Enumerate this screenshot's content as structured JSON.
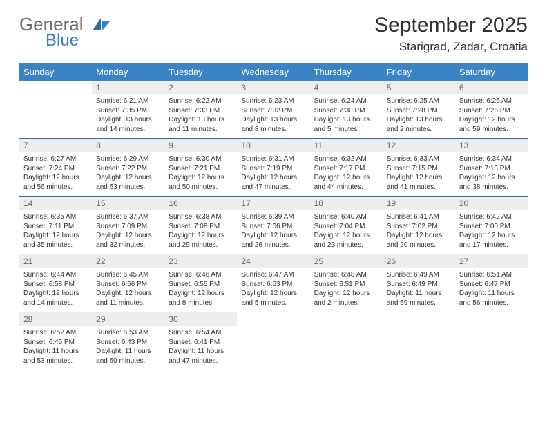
{
  "brand": {
    "part1": "General",
    "part2": "Blue"
  },
  "title": "September 2025",
  "location": "Starigrad, Zadar, Croatia",
  "colors": {
    "header_bg": "#3a84c6",
    "header_text": "#ffffff",
    "daynum_bg": "#ededed",
    "daynum_text": "#666666",
    "row_divider": "#2f6ca5",
    "brand_blue": "#3a7fc4",
    "brand_gray": "#6b6b6b"
  },
  "daynames": [
    "Sunday",
    "Monday",
    "Tuesday",
    "Wednesday",
    "Thursday",
    "Friday",
    "Saturday"
  ],
  "weeks": [
    [
      {
        "n": "",
        "sr": "",
        "ss": "",
        "dl": ""
      },
      {
        "n": "1",
        "sr": "Sunrise: 6:21 AM",
        "ss": "Sunset: 7:35 PM",
        "dl": "Daylight: 13 hours and 14 minutes."
      },
      {
        "n": "2",
        "sr": "Sunrise: 6:22 AM",
        "ss": "Sunset: 7:33 PM",
        "dl": "Daylight: 13 hours and 11 minutes."
      },
      {
        "n": "3",
        "sr": "Sunrise: 6:23 AM",
        "ss": "Sunset: 7:32 PM",
        "dl": "Daylight: 13 hours and 8 minutes."
      },
      {
        "n": "4",
        "sr": "Sunrise: 6:24 AM",
        "ss": "Sunset: 7:30 PM",
        "dl": "Daylight: 13 hours and 5 minutes."
      },
      {
        "n": "5",
        "sr": "Sunrise: 6:25 AM",
        "ss": "Sunset: 7:28 PM",
        "dl": "Daylight: 13 hours and 2 minutes."
      },
      {
        "n": "6",
        "sr": "Sunrise: 6:26 AM",
        "ss": "Sunset: 7:26 PM",
        "dl": "Daylight: 12 hours and 59 minutes."
      }
    ],
    [
      {
        "n": "7",
        "sr": "Sunrise: 6:27 AM",
        "ss": "Sunset: 7:24 PM",
        "dl": "Daylight: 12 hours and 56 minutes."
      },
      {
        "n": "8",
        "sr": "Sunrise: 6:29 AM",
        "ss": "Sunset: 7:22 PM",
        "dl": "Daylight: 12 hours and 53 minutes."
      },
      {
        "n": "9",
        "sr": "Sunrise: 6:30 AM",
        "ss": "Sunset: 7:21 PM",
        "dl": "Daylight: 12 hours and 50 minutes."
      },
      {
        "n": "10",
        "sr": "Sunrise: 6:31 AM",
        "ss": "Sunset: 7:19 PM",
        "dl": "Daylight: 12 hours and 47 minutes."
      },
      {
        "n": "11",
        "sr": "Sunrise: 6:32 AM",
        "ss": "Sunset: 7:17 PM",
        "dl": "Daylight: 12 hours and 44 minutes."
      },
      {
        "n": "12",
        "sr": "Sunrise: 6:33 AM",
        "ss": "Sunset: 7:15 PM",
        "dl": "Daylight: 12 hours and 41 minutes."
      },
      {
        "n": "13",
        "sr": "Sunrise: 6:34 AM",
        "ss": "Sunset: 7:13 PM",
        "dl": "Daylight: 12 hours and 38 minutes."
      }
    ],
    [
      {
        "n": "14",
        "sr": "Sunrise: 6:35 AM",
        "ss": "Sunset: 7:11 PM",
        "dl": "Daylight: 12 hours and 35 minutes."
      },
      {
        "n": "15",
        "sr": "Sunrise: 6:37 AM",
        "ss": "Sunset: 7:09 PM",
        "dl": "Daylight: 12 hours and 32 minutes."
      },
      {
        "n": "16",
        "sr": "Sunrise: 6:38 AM",
        "ss": "Sunset: 7:08 PM",
        "dl": "Daylight: 12 hours and 29 minutes."
      },
      {
        "n": "17",
        "sr": "Sunrise: 6:39 AM",
        "ss": "Sunset: 7:06 PM",
        "dl": "Daylight: 12 hours and 26 minutes."
      },
      {
        "n": "18",
        "sr": "Sunrise: 6:40 AM",
        "ss": "Sunset: 7:04 PM",
        "dl": "Daylight: 12 hours and 23 minutes."
      },
      {
        "n": "19",
        "sr": "Sunrise: 6:41 AM",
        "ss": "Sunset: 7:02 PM",
        "dl": "Daylight: 12 hours and 20 minutes."
      },
      {
        "n": "20",
        "sr": "Sunrise: 6:42 AM",
        "ss": "Sunset: 7:00 PM",
        "dl": "Daylight: 12 hours and 17 minutes."
      }
    ],
    [
      {
        "n": "21",
        "sr": "Sunrise: 6:44 AM",
        "ss": "Sunset: 6:58 PM",
        "dl": "Daylight: 12 hours and 14 minutes."
      },
      {
        "n": "22",
        "sr": "Sunrise: 6:45 AM",
        "ss": "Sunset: 6:56 PM",
        "dl": "Daylight: 12 hours and 11 minutes."
      },
      {
        "n": "23",
        "sr": "Sunrise: 6:46 AM",
        "ss": "Sunset: 6:55 PM",
        "dl": "Daylight: 12 hours and 8 minutes."
      },
      {
        "n": "24",
        "sr": "Sunrise: 6:47 AM",
        "ss": "Sunset: 6:53 PM",
        "dl": "Daylight: 12 hours and 5 minutes."
      },
      {
        "n": "25",
        "sr": "Sunrise: 6:48 AM",
        "ss": "Sunset: 6:51 PM",
        "dl": "Daylight: 12 hours and 2 minutes."
      },
      {
        "n": "26",
        "sr": "Sunrise: 6:49 AM",
        "ss": "Sunset: 6:49 PM",
        "dl": "Daylight: 11 hours and 59 minutes."
      },
      {
        "n": "27",
        "sr": "Sunrise: 6:51 AM",
        "ss": "Sunset: 6:47 PM",
        "dl": "Daylight: 11 hours and 56 minutes."
      }
    ],
    [
      {
        "n": "28",
        "sr": "Sunrise: 6:52 AM",
        "ss": "Sunset: 6:45 PM",
        "dl": "Daylight: 11 hours and 53 minutes."
      },
      {
        "n": "29",
        "sr": "Sunrise: 6:53 AM",
        "ss": "Sunset: 6:43 PM",
        "dl": "Daylight: 11 hours and 50 minutes."
      },
      {
        "n": "30",
        "sr": "Sunrise: 6:54 AM",
        "ss": "Sunset: 6:41 PM",
        "dl": "Daylight: 11 hours and 47 minutes."
      },
      {
        "n": "",
        "sr": "",
        "ss": "",
        "dl": ""
      },
      {
        "n": "",
        "sr": "",
        "ss": "",
        "dl": ""
      },
      {
        "n": "",
        "sr": "",
        "ss": "",
        "dl": ""
      },
      {
        "n": "",
        "sr": "",
        "ss": "",
        "dl": ""
      }
    ]
  ]
}
